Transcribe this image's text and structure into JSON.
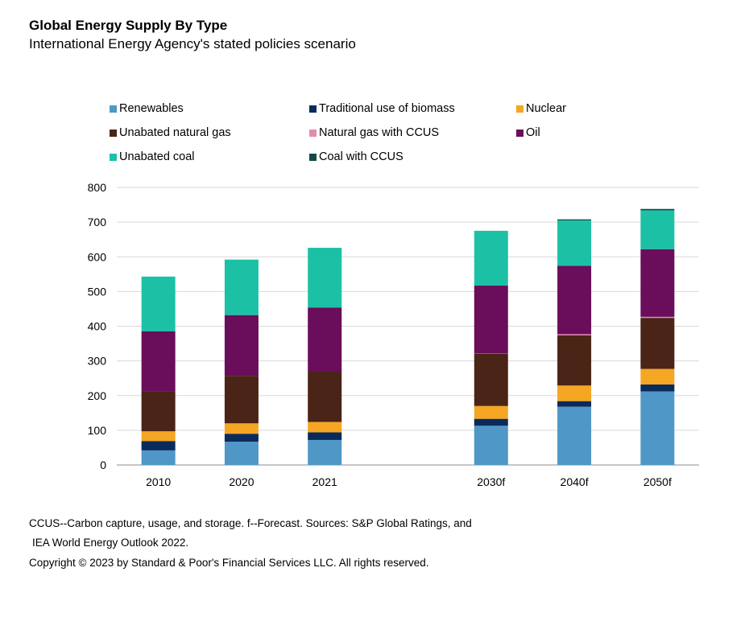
{
  "title": "Global Energy Supply By Type",
  "subtitle": "International Energy Agency's stated policies scenario",
  "footnotes": {
    "line1": "CCUS--Carbon capture, usage, and storage. f--Forecast. Sources: S&P Global Ratings, and",
    "line2": "IEA World Energy Outlook 2022.",
    "line3": "Copyright © 2023 by Standard & Poor's Financial Services LLC. All rights reserved."
  },
  "chart_data": {
    "type": "bar",
    "stacked": true,
    "title": "Global Energy Supply By Type",
    "xlabel": "",
    "ylabel": "",
    "ylim": [
      0,
      800
    ],
    "yticks": [
      0,
      100,
      200,
      300,
      400,
      500,
      600,
      700,
      800
    ],
    "grid": true,
    "legend_position": "top",
    "categories": [
      "2010",
      "2020",
      "2021",
      "",
      "2030f",
      "2040f",
      "2050f"
    ],
    "series": [
      {
        "name": "Renewables",
        "color": "#4f97c7",
        "values": [
          42,
          67,
          72,
          null,
          113,
          168,
          212
        ]
      },
      {
        "name": "Traditional use of biomass",
        "color": "#0b2a5c",
        "values": [
          27,
          23,
          22,
          null,
          20,
          16,
          20
        ]
      },
      {
        "name": "Nuclear",
        "color": "#f5a623",
        "values": [
          28,
          30,
          30,
          null,
          37,
          45,
          45
        ]
      },
      {
        "name": "Unabated natural gas",
        "color": "#4a2416",
        "values": [
          115,
          137,
          145,
          null,
          150,
          145,
          147
        ]
      },
      {
        "name": "Natural gas with CCUS",
        "color": "#e48bb0",
        "values": [
          0,
          0,
          0,
          null,
          1,
          3,
          3
        ]
      },
      {
        "name": "Oil",
        "color": "#6a0d5a",
        "values": [
          173,
          175,
          185,
          null,
          196,
          197,
          195
        ]
      },
      {
        "name": "Unabated coal",
        "color": "#1cc1a5",
        "values": [
          158,
          160,
          172,
          null,
          158,
          131,
          112
        ]
      },
      {
        "name": "Coal with CCUS",
        "color": "#0f4b44",
        "values": [
          0,
          0,
          0,
          null,
          0,
          3,
          4
        ]
      }
    ]
  }
}
